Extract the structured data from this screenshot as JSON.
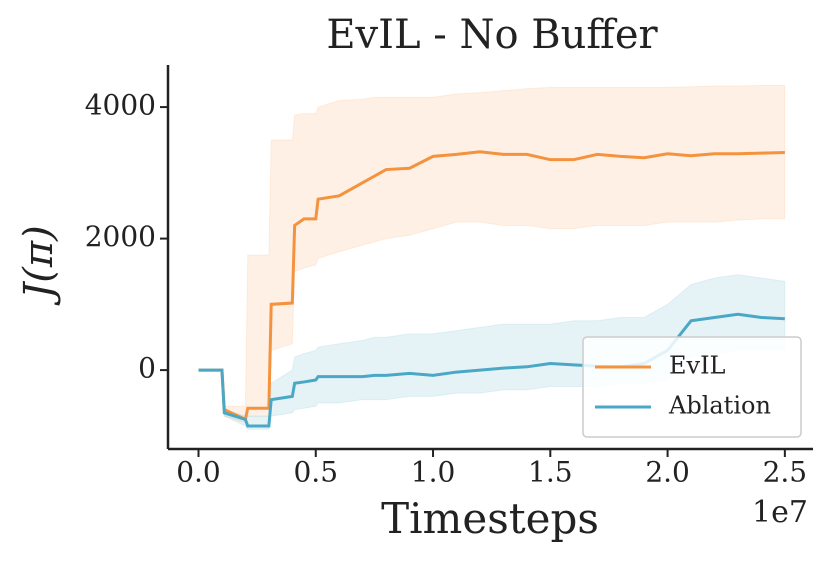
{
  "chart_data": {
    "type": "line",
    "title": "EvIL - No Buffer",
    "xlabel": "Timesteps",
    "ylabel": "J(π)",
    "x_offset_label": "1e7",
    "x": [
      0,
      0.1,
      0.11,
      0.2,
      0.21,
      0.3,
      0.31,
      0.4,
      0.41,
      0.45,
      0.5,
      0.51,
      0.6,
      0.7,
      0.75,
      0.8,
      0.9,
      1.0,
      1.1,
      1.2,
      1.3,
      1.4,
      1.5,
      1.6,
      1.7,
      1.8,
      1.9,
      2.0,
      2.1,
      2.2,
      2.3,
      2.4,
      2.5
    ],
    "series": [
      {
        "name": "EvIL",
        "color": "#f5923e",
        "values": [
          0,
          0,
          -600,
          -750,
          -580,
          -580,
          1000,
          1020,
          2200,
          2300,
          2300,
          2600,
          2650,
          2850,
          2950,
          3050,
          3070,
          3250,
          3280,
          3320,
          3280,
          3280,
          3200,
          3200,
          3280,
          3250,
          3230,
          3290,
          3260,
          3290,
          3290,
          3300,
          3310
        ],
        "upper": [
          0,
          0,
          -550,
          -550,
          1750,
          1750,
          3500,
          3500,
          3880,
          3900,
          3900,
          4000,
          4100,
          4120,
          4150,
          4150,
          4150,
          4150,
          4200,
          4220,
          4250,
          4280,
          4300,
          4300,
          4300,
          4300,
          4300,
          4300,
          4310,
          4320,
          4320,
          4330,
          4330
        ],
        "lower": [
          0,
          0,
          -700,
          -800,
          -700,
          -700,
          300,
          400,
          1500,
          1550,
          1600,
          1700,
          1800,
          1900,
          1950,
          2000,
          2050,
          2150,
          2250,
          2250,
          2200,
          2200,
          2150,
          2150,
          2200,
          2200,
          2200,
          2250,
          2250,
          2250,
          2280,
          2300,
          2300
        ]
      },
      {
        "name": "Ablation",
        "color": "#4aa8c6",
        "values": [
          0,
          0,
          -650,
          -750,
          -850,
          -850,
          -450,
          -400,
          -200,
          -180,
          -150,
          -100,
          -100,
          -100,
          -80,
          -80,
          -50,
          -80,
          -30,
          0,
          30,
          50,
          100,
          80,
          60,
          50,
          100,
          300,
          750,
          800,
          850,
          800,
          780
        ],
        "upper": [
          0,
          0,
          -600,
          -700,
          -700,
          -700,
          -200,
          0,
          200,
          250,
          300,
          350,
          400,
          450,
          500,
          500,
          550,
          550,
          600,
          650,
          700,
          700,
          700,
          750,
          750,
          800,
          800,
          1000,
          1300,
          1400,
          1450,
          1400,
          1350
        ],
        "lower": [
          0,
          0,
          -700,
          -850,
          -900,
          -900,
          -700,
          -650,
          -600,
          -580,
          -550,
          -500,
          -500,
          -450,
          -450,
          -450,
          -400,
          -400,
          -350,
          -350,
          -300,
          -300,
          -250,
          -250,
          -250,
          -200,
          -200,
          -150,
          200,
          250,
          300,
          300,
          300
        ]
      }
    ],
    "xlim": [
      -0.13,
      2.62
    ],
    "xticks": [
      {
        "value": 0,
        "label": "0.0"
      },
      0.5,
      {
        "value": 1,
        "label": "1.0"
      },
      1.5,
      {
        "value": 2,
        "label": "2.0"
      },
      2.5
    ],
    "ylim": [
      -1200,
      4640
    ],
    "yticks": [
      0,
      2000,
      4000
    ],
    "grid": false,
    "legend": "lower right"
  }
}
